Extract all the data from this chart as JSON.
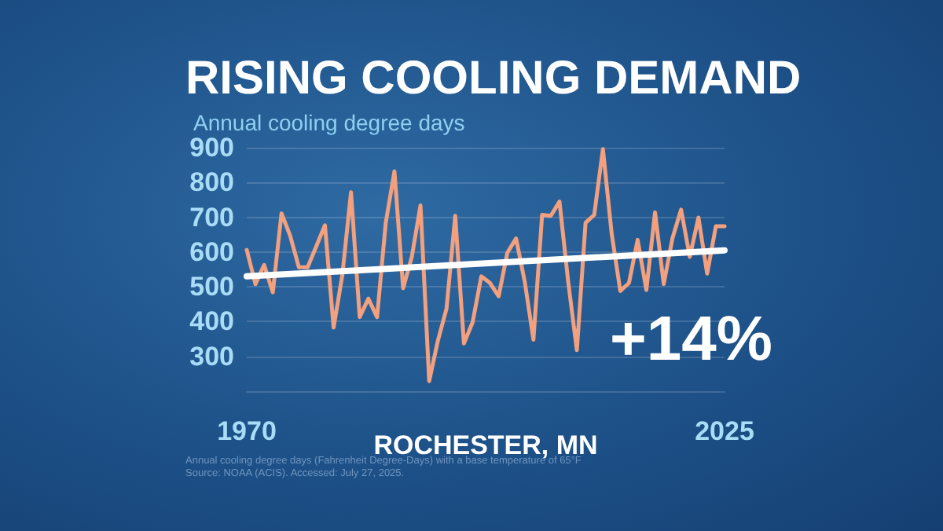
{
  "chart_data": {
    "type": "line",
    "title": "RISING COOLING DEMAND",
    "subtitle": "Annual cooling degree days",
    "xlabel": "ROCHESTER, MN",
    "x": [
      1970,
      1971,
      1972,
      1973,
      1974,
      1975,
      1976,
      1977,
      1978,
      1979,
      1980,
      1981,
      1982,
      1983,
      1984,
      1985,
      1986,
      1987,
      1988,
      1989,
      1990,
      1991,
      1992,
      1993,
      1994,
      1995,
      1996,
      1997,
      1998,
      1999,
      2000,
      2001,
      2002,
      2003,
      2004,
      2005,
      2006,
      2007,
      2008,
      2009,
      2010,
      2011,
      2012,
      2013,
      2014,
      2015,
      2016,
      2017,
      2018,
      2019,
      2020,
      2021,
      2022,
      2023,
      2024,
      2025
    ],
    "series": [
      {
        "color": "#f2a07e",
        "values": [
          606,
          508,
          563,
          484,
          711,
          647,
          556,
          556,
          616,
          677,
          383,
          533,
          772,
          413,
          466,
          413,
          684,
          832,
          496,
          586,
          734,
          229,
          345,
          438,
          704,
          337,
          398,
          530,
          511,
          473,
          598,
          639,
          515,
          348,
          707,
          704,
          745,
          515,
          318,
          684,
          707,
          896,
          654,
          488,
          511,
          635,
          491,
          714,
          508,
          639,
          722,
          586,
          699,
          538,
          674,
          674
        ]
      },
      {
        "type": "line",
        "color": "#ffffff",
        "x": [
          1970,
          2025
        ],
        "values": [
          530,
          605
        ]
      }
    ],
    "xlim": [
      1970,
      2025
    ],
    "xticks": [
      1970,
      2025
    ],
    "ylim": [
      200,
      900
    ],
    "yticks": [
      300,
      400,
      500,
      600,
      700,
      800,
      900
    ],
    "grid": "y",
    "marker": "none",
    "annotations": [
      "+14%",
      "Annual cooling degree days (Fahrenheit Degree-Days) with a base temperature of 65°F",
      "Source: NOAA (ACIS). Accessed: July 27, 2025."
    ]
  }
}
